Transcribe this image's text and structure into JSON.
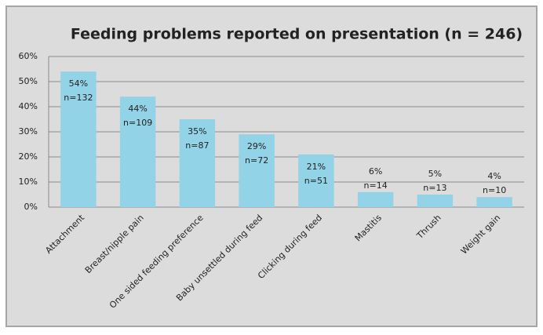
{
  "chart_data": {
    "type": "bar",
    "title": "Feeding problems reported on presentation (n = 246)",
    "categories": [
      "Attachment",
      "Breast/nipple pain",
      "One sided feeding preference",
      "Baby unsettled during feed",
      "Clicking during feed",
      "Mastitis",
      "Thrush",
      "Weight gain"
    ],
    "values": [
      54,
      44,
      35,
      29,
      21,
      6,
      5,
      4
    ],
    "value_labels": [
      "54%",
      "44%",
      "35%",
      "29%",
      "21%",
      "6%",
      "5%",
      "4%"
    ],
    "count_labels": [
      "n=132",
      "n=109",
      "n=87",
      "n=72",
      "n=51",
      "n=14",
      "n=13",
      "n=10"
    ],
    "color": "#93d3e8",
    "ylim": [
      0,
      60
    ],
    "yticks": [
      {
        "value": 0,
        "label": "0%"
      },
      {
        "value": 10,
        "label": "10%"
      },
      {
        "value": 20,
        "label": "20%"
      },
      {
        "value": 30,
        "label": "30%"
      },
      {
        "value": 40,
        "label": "40%"
      },
      {
        "value": 50,
        "label": "50%"
      },
      {
        "value": 60,
        "label": "60%"
      }
    ],
    "grid": true
  }
}
